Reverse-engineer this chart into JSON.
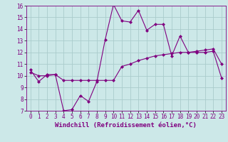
{
  "x": [
    0,
    1,
    2,
    3,
    4,
    5,
    6,
    7,
    8,
    9,
    10,
    11,
    12,
    13,
    14,
    15,
    16,
    17,
    18,
    19,
    20,
    21,
    22,
    23
  ],
  "line1": [
    10.5,
    9.5,
    10.1,
    10.1,
    7.0,
    7.1,
    8.3,
    7.8,
    9.5,
    13.1,
    16.1,
    14.7,
    14.6,
    15.6,
    13.9,
    14.4,
    14.4,
    11.7,
    13.4,
    12.0,
    12.1,
    12.2,
    12.3,
    11.0
  ],
  "line2": [
    10.3,
    10.0,
    10.0,
    10.1,
    9.6,
    9.6,
    9.6,
    9.6,
    9.6,
    9.6,
    9.6,
    10.8,
    11.0,
    11.3,
    11.5,
    11.7,
    11.8,
    11.9,
    12.0,
    12.0,
    12.0,
    12.0,
    12.1,
    9.8
  ],
  "line_color": "#800080",
  "bg_color": "#cce8e8",
  "grid_color": "#aacccc",
  "xlabel": "Windchill (Refroidissement éolien,°C)",
  "ylim": [
    7,
    16
  ],
  "xlim": [
    -0.5,
    23.5
  ],
  "yticks": [
    7,
    8,
    9,
    10,
    11,
    12,
    13,
    14,
    15,
    16
  ],
  "xticks": [
    0,
    1,
    2,
    3,
    4,
    5,
    6,
    7,
    8,
    9,
    10,
    11,
    12,
    13,
    14,
    15,
    16,
    17,
    18,
    19,
    20,
    21,
    22,
    23
  ],
  "xlabel_fontsize": 6.5,
  "tick_fontsize": 5.5
}
